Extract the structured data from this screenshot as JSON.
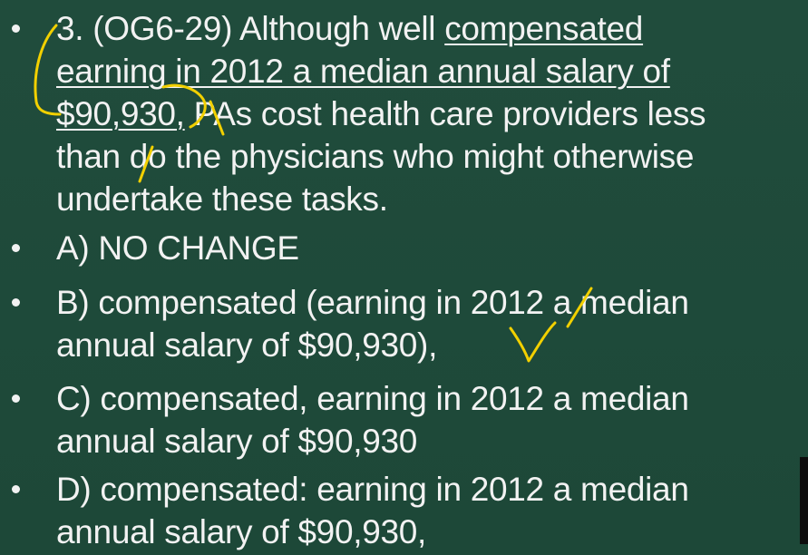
{
  "question": {
    "line1_prefix": "3. (OG6-29) Although well ",
    "line1_underlined": "compensated",
    "line2_underlined": "earning in 2012 a median annual salary of",
    "line3_underlined": "$90,930,",
    "line3_rest": " PAs cost health care providers less",
    "line4": "than do the physicians who might otherwise",
    "line5": "undertake these tasks."
  },
  "options": [
    {
      "lines": [
        "A) NO CHANGE"
      ]
    },
    {
      "lines": [
        "B) compensated (earning in 2012 a median",
        "annual salary of $90,930),"
      ]
    },
    {
      "lines": [
        "C) compensated, earning in 2012 a median",
        "annual salary of $90,930"
      ]
    },
    {
      "lines": [
        "D) compensated: earning in 2012 a median",
        "annual salary of $90,930,"
      ]
    }
  ],
  "colors": {
    "background": "#1f4a3b",
    "text": "#f2f2f2",
    "annotation": "#f2d000"
  }
}
